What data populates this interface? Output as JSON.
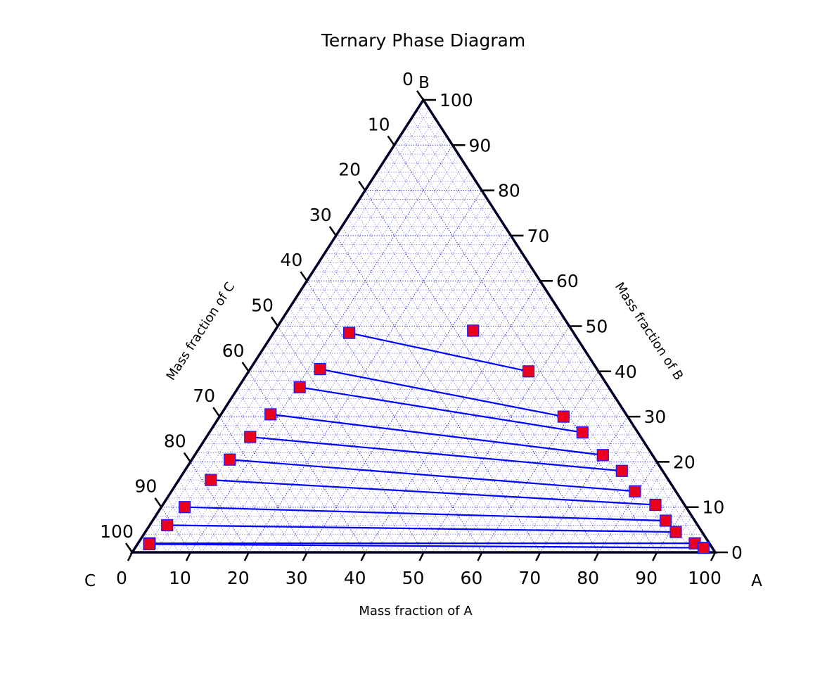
{
  "chart_data": {
    "type": "scatter",
    "subtype": "ternary",
    "title": "Ternary Phase Diagram",
    "corner_labels": {
      "a": "A",
      "b": "B",
      "c": "C"
    },
    "axis_labels": {
      "a": "Mass fraction of A",
      "b": "Mass fraction of B",
      "c": "Mass fraction of C"
    },
    "axis_range": [
      0,
      100
    ],
    "ticks": [
      0,
      10,
      20,
      30,
      40,
      50,
      60,
      70,
      80,
      90,
      100
    ],
    "grid": true,
    "colors": {
      "tieline": "#0000ff",
      "marker": "#e8001c",
      "grid": "#0000cc",
      "frame": "#000028"
    },
    "single_points": [
      {
        "a": 34.0,
        "b": 49.0
      }
    ],
    "tie_lines": [
      {
        "left": {
          "a": 13.0,
          "b": 48.5
        },
        "right": {
          "a": 48.0,
          "b": 40.0
        }
      },
      {
        "left": {
          "a": 12.0,
          "b": 40.5
        },
        "right": {
          "a": 59.0,
          "b": 30.0
        }
      },
      {
        "left": {
          "a": 10.5,
          "b": 36.5
        },
        "right": {
          "a": 64.0,
          "b": 26.5
        }
      },
      {
        "left": {
          "a": 8.5,
          "b": 30.5
        },
        "right": {
          "a": 70.0,
          "b": 21.5
        }
      },
      {
        "left": {
          "a": 7.5,
          "b": 25.5
        },
        "right": {
          "a": 75.0,
          "b": 18.0
        }
      },
      {
        "left": {
          "a": 6.5,
          "b": 20.5
        },
        "right": {
          "a": 79.5,
          "b": 13.5
        }
      },
      {
        "left": {
          "a": 5.5,
          "b": 16.0
        },
        "right": {
          "a": 84.5,
          "b": 10.5
        }
      },
      {
        "left": {
          "a": 4.0,
          "b": 10.0
        },
        "right": {
          "a": 88.0,
          "b": 7.0
        }
      },
      {
        "left": {
          "a": 3.0,
          "b": 6.0
        },
        "right": {
          "a": 91.0,
          "b": 4.5
        }
      },
      {
        "left": {
          "a": 2.0,
          "b": 2.0
        },
        "right": {
          "a": 95.5,
          "b": 2.0
        }
      },
      {
        "left": {
          "a": 2.0,
          "b": 1.8
        },
        "right": {
          "a": 97.5,
          "b": 1.0
        }
      }
    ]
  }
}
